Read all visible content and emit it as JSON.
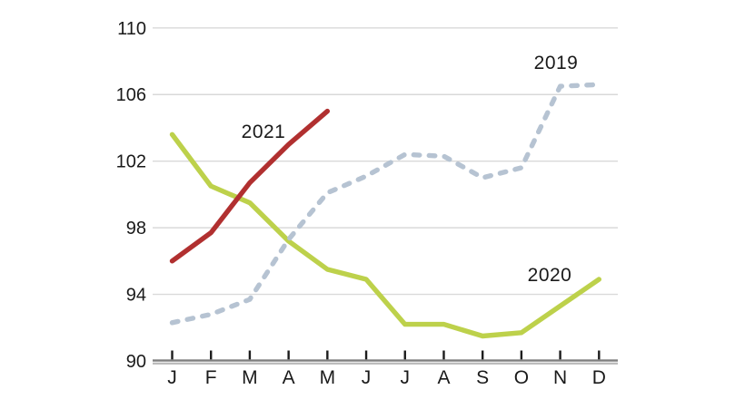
{
  "chart_data": {
    "type": "line",
    "title": "",
    "xlabel": "",
    "ylabel": "",
    "x_labels": [
      "J",
      "F",
      "M",
      "A",
      "M",
      "J",
      "J",
      "A",
      "S",
      "O",
      "N",
      "D"
    ],
    "y_ticks": [
      110,
      106,
      102,
      98,
      94,
      90
    ],
    "ylim": [
      90,
      110
    ],
    "grid": true,
    "legend_position": "inline-annotations",
    "series": [
      {
        "name": "2019",
        "style": "dashed",
        "color": "#b6c3d2",
        "values": [
          92.3,
          92.8,
          93.7,
          97.3,
          100.1,
          101.1,
          102.4,
          102.3,
          101.0,
          101.6,
          106.5,
          106.6
        ]
      },
      {
        "name": "2020",
        "style": "solid",
        "color": "#bdd14b",
        "values": [
          103.6,
          100.5,
          99.5,
          97.2,
          95.5,
          94.9,
          92.2,
          92.2,
          91.5,
          91.7,
          93.3,
          94.9
        ]
      },
      {
        "name": "2021",
        "style": "solid",
        "color": "#b13030",
        "values": [
          96.0,
          97.7,
          100.7,
          103.0,
          105.0
        ]
      }
    ],
    "annotations": [
      {
        "text": "2019",
        "anchor": "above Nov plateau of 2019 line"
      },
      {
        "text": "2021",
        "anchor": "above Mar-Apr of 2021 line"
      },
      {
        "text": "2020",
        "anchor": "above Oct-Nov of 2020 line"
      }
    ]
  },
  "colors": {
    "background": "#ffffff",
    "gridline": "#d9d9d9",
    "axis_dark": "#7f7f7f",
    "axis_light": "#b9b9b9",
    "tick": "#1c1c1c",
    "text": "#1a1a1a",
    "series_2019": "#b6c3d2",
    "series_2020": "#bdd14b",
    "series_2021": "#b13030"
  }
}
